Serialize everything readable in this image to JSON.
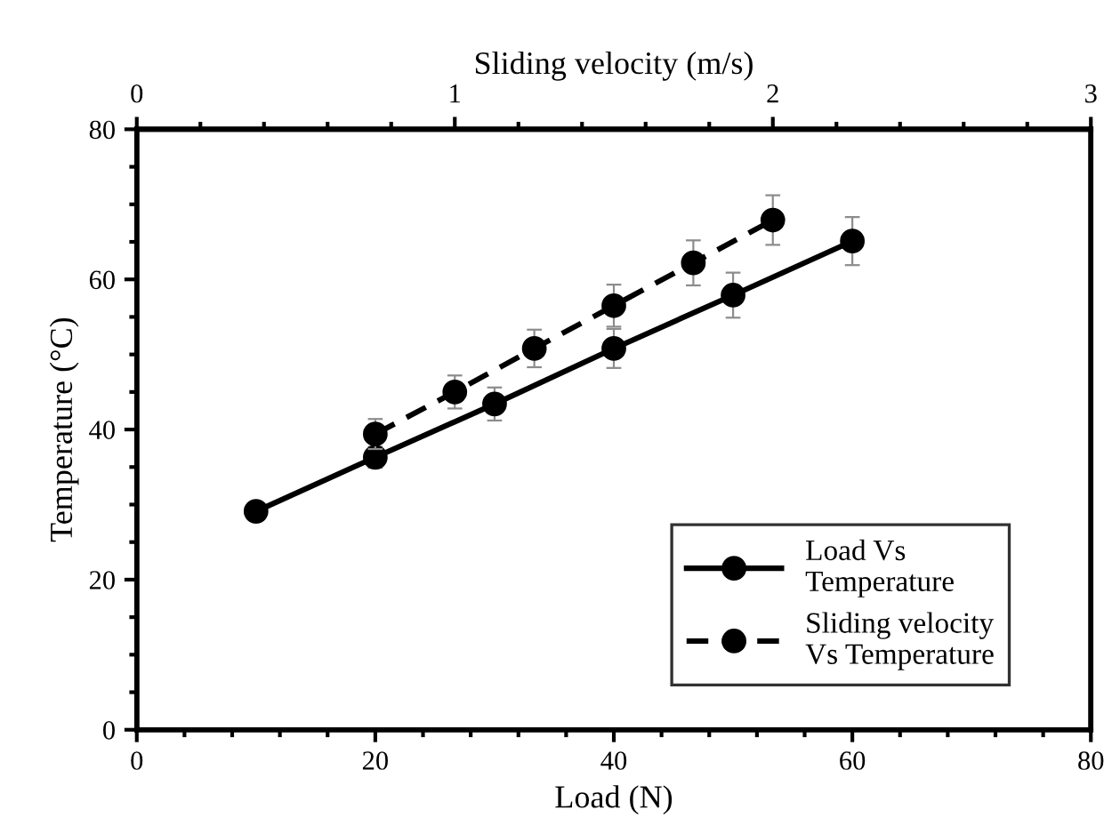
{
  "chart_data": {
    "type": "line",
    "xlabel": "Load (N)",
    "x2label": "Sliding velocity (m/s)",
    "ylabel": "Temperature (°C)",
    "xlim": [
      0,
      80
    ],
    "xticks": [
      0,
      20,
      40,
      60,
      80
    ],
    "x2lim": [
      0,
      3
    ],
    "x2ticks": [
      0,
      1,
      2,
      3
    ],
    "ylim": [
      0,
      80
    ],
    "yticks": [
      0,
      20,
      40,
      60,
      80
    ],
    "grid": false,
    "legend": "bottom right",
    "marker": "circle",
    "series": [
      {
        "name": "Load Vs Temperature",
        "color": "#000000",
        "line_style": "solid",
        "x": [
          10,
          20,
          30,
          40,
          50,
          60
        ],
        "values": [
          29.1,
          36.3,
          43.4,
          50.8,
          57.9,
          65.1
        ],
        "errors": [
          null,
          1.4,
          2.2,
          2.6,
          3,
          3.2
        ]
      },
      {
        "name": "Sliding velocity Vs Temperature",
        "color": "#000000",
        "line_style": "dashed",
        "axis": "x2",
        "x": [
          0.75,
          1,
          1.25,
          1.5,
          1.75,
          2
        ],
        "values": [
          39.4,
          45,
          50.8,
          56.5,
          62.2,
          67.9
        ],
        "errors": [
          2,
          2.2,
          2.5,
          2.8,
          3,
          3.3
        ]
      }
    ]
  }
}
